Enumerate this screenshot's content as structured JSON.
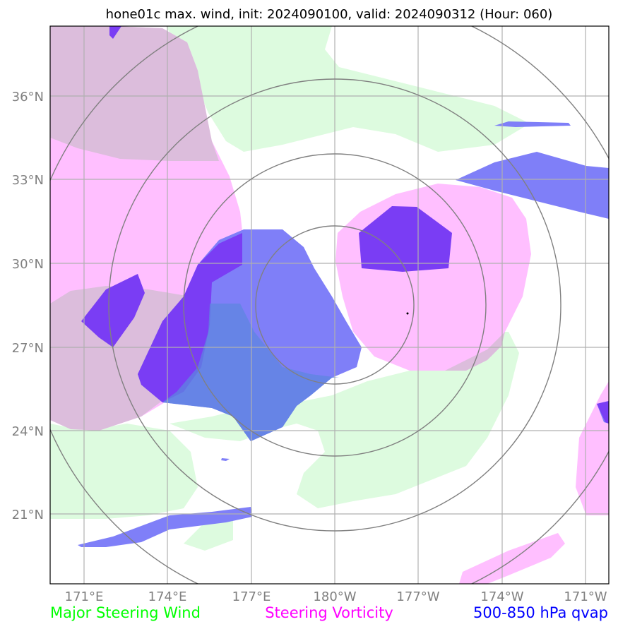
{
  "title": "hone01c max. wind, init: 2024090100, valid: 2024090312 (Hour: 060)",
  "lat_labels": [
    "36°N",
    "33°N",
    "30°N",
    "27°N",
    "24°N",
    "21°N"
  ],
  "lon_labels": [
    "171°E",
    "174°E",
    "177°E",
    "180°W",
    "177°W",
    "174°W",
    "171°W"
  ],
  "legend": [
    {
      "label": "Major Steering Wind",
      "color": "#00ff00"
    },
    {
      "label": "Steering Vorticity",
      "color": "#ff00ff"
    },
    {
      "label": "500-850 hPa qvap",
      "color": "#0000ff"
    }
  ],
  "colors": {
    "steering_wind_fill": "#ddfbdf",
    "vorticity_fill": "#ffbfff",
    "qvap_fill": "#7f7ff8",
    "qvap_dark_fill": "#7a3df4",
    "gridline": "#b0b0b0",
    "range_rings": "#808080"
  },
  "map": {
    "lat_range": [
      "19°N",
      "38°N"
    ],
    "lon_range": [
      "170°E",
      "171°W"
    ],
    "center_marker": "storm-center"
  }
}
